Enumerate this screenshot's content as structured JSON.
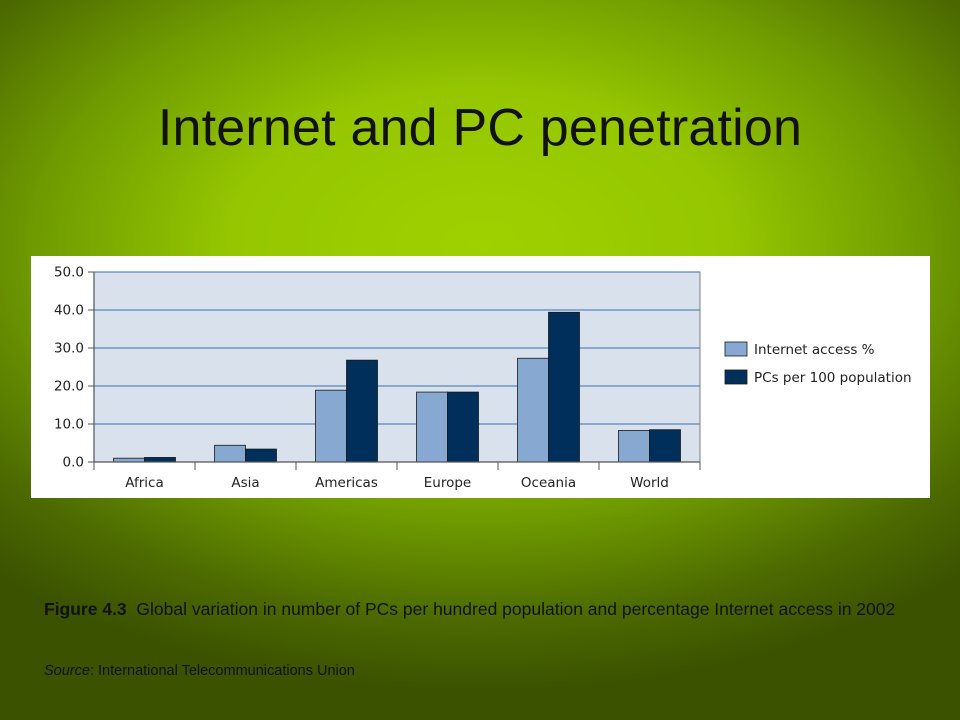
{
  "slide": {
    "title": "Internet and PC penetration"
  },
  "caption": {
    "figure_label": "Figure 4.3",
    "text": "Global variation in number of PCs per hundred population and percentage Internet access in 2002"
  },
  "source": {
    "label": "Source",
    "text": ": International Telecommunications Union"
  },
  "colors": {
    "internet": "#87a9d1",
    "pcs": "#002f5c",
    "plot_bg": "#d8e1ec",
    "grid": "#5b86bd"
  },
  "chart_data": {
    "type": "bar",
    "categories": [
      "Africa",
      "Asia",
      "Americas",
      "Europe",
      "Oceania",
      "World"
    ],
    "series": [
      {
        "name": "Internet access %",
        "values": [
          1.0,
          4.4,
          18.9,
          18.4,
          27.3,
          8.3
        ]
      },
      {
        "name": "PCs per 100 population",
        "values": [
          1.2,
          3.4,
          26.8,
          18.4,
          39.4,
          8.5
        ]
      }
    ],
    "ylim": [
      0,
      50
    ],
    "yticks": [
      "0.0",
      "10.0",
      "20.0",
      "30.0",
      "40.0",
      "50.0"
    ],
    "ytick_values": [
      0,
      10,
      20,
      30,
      40,
      50
    ],
    "grid": true,
    "legend": "right"
  }
}
